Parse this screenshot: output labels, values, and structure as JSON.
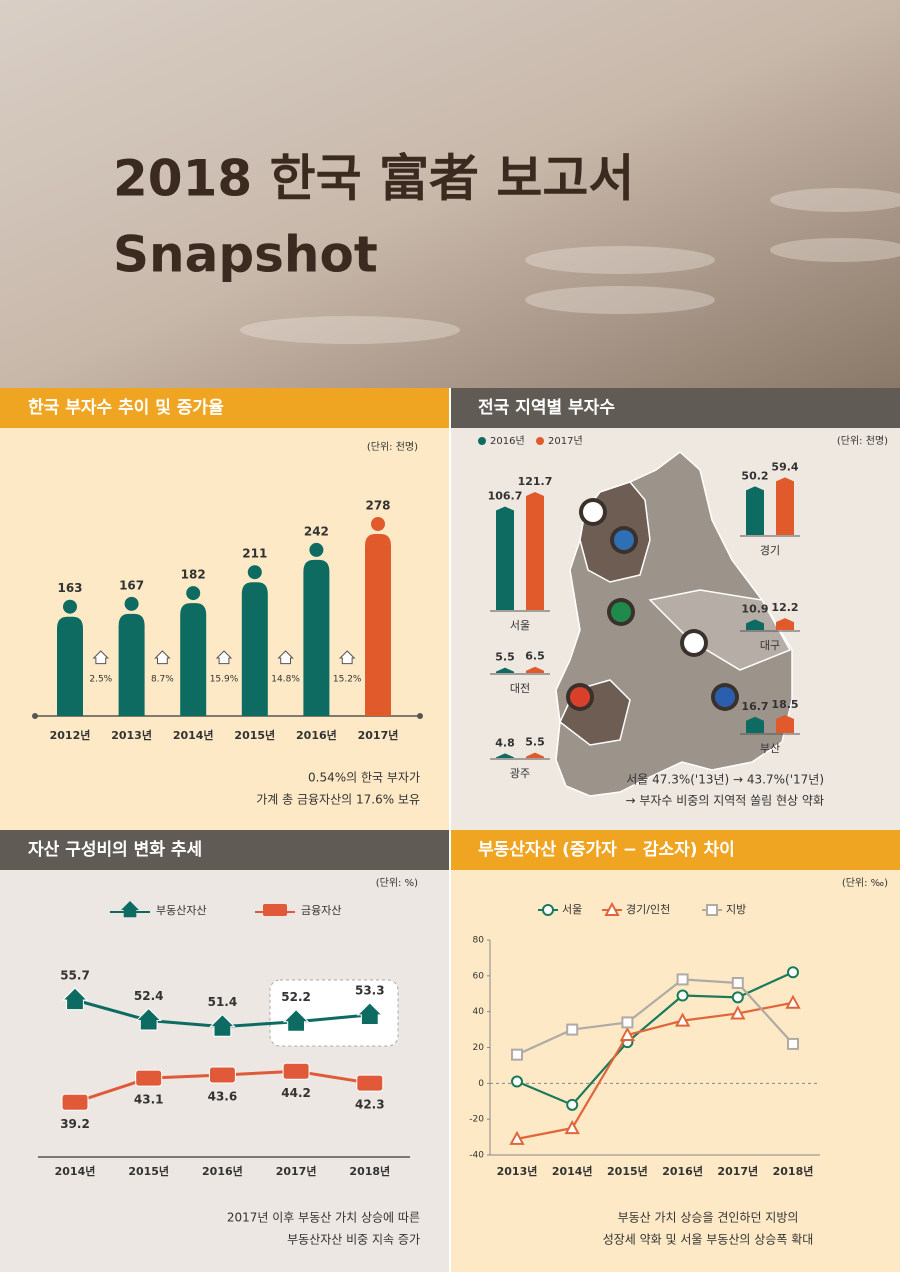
{
  "header": {
    "title": "2018 한국 富者 보고서",
    "subtitle": "Snapshot"
  },
  "chart_data": [
    {
      "type": "bar",
      "title": "한국 부자수 추이 및 증가율",
      "unit": "(단위: 천명)",
      "categories": [
        "2012년",
        "2013년",
        "2014년",
        "2015년",
        "2016년",
        "2017년"
      ],
      "values": [
        163,
        167,
        182,
        211,
        242,
        278
      ],
      "colors": [
        "#0d6b62",
        "#0d6b62",
        "#0d6b62",
        "#0d6b62",
        "#0d6b62",
        "#e05a2b"
      ],
      "growth": {
        "values": [
          2.5,
          8.7,
          15.9,
          14.8,
          15.2
        ],
        "value_labels": [
          "2.5%",
          "8.7%",
          "15.9%",
          "14.8%",
          "15.2%"
        ]
      },
      "notes": [
        "0.54%의 한국 부자가",
        "가계 총 금융자산의 17.6% 보유"
      ]
    },
    {
      "type": "grouped_bar",
      "title": "전국 지역별 부자수",
      "unit": "(단위: 천명)",
      "categories": [
        "서울",
        "경기",
        "대구",
        "대전",
        "부산",
        "광주"
      ],
      "series": [
        {
          "name": "2016년",
          "color": "#0d6b62",
          "values": [
            106.7,
            50.2,
            10.9,
            5.5,
            16.7,
            4.8
          ]
        },
        {
          "name": "2017년",
          "color": "#e05a2b",
          "values": [
            121.7,
            59.4,
            12.2,
            6.5,
            18.5,
            5.5
          ]
        }
      ],
      "notes": [
        "서울 47.3%('13년) → 43.7%('17년)",
        "→ 부자수 비중의 지역적 쏠림 현상 약화"
      ]
    },
    {
      "type": "icon_line",
      "title": "자산 구성비의 변화 추세",
      "unit": "(단위: %)",
      "categories": [
        "2014년",
        "2015년",
        "2016년",
        "2017년",
        "2018년"
      ],
      "series": [
        {
          "name": "부동산자산",
          "color": "#0d6b62",
          "values": [
            55.7,
            52.4,
            51.4,
            52.2,
            53.3
          ]
        },
        {
          "name": "금융자산",
          "color": "#e05a3a",
          "values": [
            39.2,
            43.1,
            43.6,
            44.2,
            42.3
          ]
        }
      ],
      "notes": [
        "2017년 이후 부동산 가치 상승에 따른",
        "부동산자산 비중 지속 증가"
      ]
    },
    {
      "type": "line",
      "title": "부동산자산 (증가자 − 감소자) 차이",
      "unit": "(단위: ‰)",
      "categories": [
        "2013년",
        "2014년",
        "2015년",
        "2016년",
        "2017년",
        "2018년"
      ],
      "ylim": [
        -40,
        80
      ],
      "yticks": [
        -40,
        -20,
        0,
        20,
        40,
        60,
        80
      ],
      "grid": false,
      "series": [
        {
          "name": "서울",
          "color": "#1a7a5a",
          "marker": "circle",
          "values": [
            1,
            -12,
            23,
            49,
            48,
            62
          ]
        },
        {
          "name": "경기/인천",
          "color": "#e0663a",
          "marker": "triangle",
          "values": [
            -31,
            -25,
            27,
            35,
            39,
            45
          ]
        },
        {
          "name": "지방",
          "color": "#b0aaa5",
          "marker": "square",
          "values": [
            16,
            30,
            34,
            58,
            56,
            22
          ]
        }
      ],
      "notes": [
        "부동산 가치 상승을 견인하던 지방의",
        "성장세 약화 및 서울 부동산의 상승폭 확대"
      ]
    }
  ]
}
